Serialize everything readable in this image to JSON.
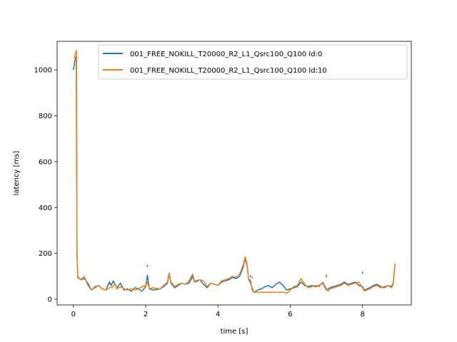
{
  "chart_data": {
    "type": "line",
    "title": "",
    "xlabel": "time [s]",
    "ylabel": "latency [ms]",
    "xlim": [
      -0.45,
      9.35
    ],
    "ylim": [
      -25,
      1125
    ],
    "xticks": [
      0,
      2,
      4,
      6,
      8
    ],
    "yticks": [
      0,
      200,
      400,
      600,
      800,
      1000
    ],
    "grid": false,
    "legend_position": "top-right",
    "series": [
      {
        "name": "001_FREE_NOKILL_T20000_R2_L1_Qsrc100_Q100 Id:0",
        "color": "#1f77b4",
        "points": [
          [
            0.0,
            1000
          ],
          [
            0.04,
            1040
          ],
          [
            0.08,
            1060
          ],
          [
            0.1,
            200
          ],
          [
            0.12,
            95
          ],
          [
            0.2,
            85
          ],
          [
            0.3,
            90
          ],
          [
            0.4,
            70
          ],
          [
            0.5,
            40
          ],
          [
            0.6,
            55
          ],
          [
            0.7,
            60
          ],
          [
            0.8,
            45
          ],
          [
            0.9,
            40
          ],
          [
            1.0,
            75
          ],
          [
            1.05,
            60
          ],
          [
            1.1,
            80
          ],
          [
            1.2,
            50
          ],
          [
            1.3,
            70
          ],
          [
            1.4,
            40
          ],
          [
            1.5,
            45
          ],
          [
            1.6,
            35
          ],
          [
            1.7,
            50
          ],
          [
            1.8,
            45
          ],
          [
            1.9,
            35
          ],
          [
            2.0,
            55
          ],
          [
            2.05,
            105
          ],
          [
            2.1,
            45
          ],
          [
            2.2,
            40
          ],
          [
            2.4,
            45
          ],
          [
            2.5,
            55
          ],
          [
            2.6,
            70
          ],
          [
            2.65,
            110
          ],
          [
            2.7,
            70
          ],
          [
            2.8,
            50
          ],
          [
            2.9,
            60
          ],
          [
            3.0,
            70
          ],
          [
            3.1,
            65
          ],
          [
            3.2,
            70
          ],
          [
            3.3,
            100
          ],
          [
            3.35,
            75
          ],
          [
            3.4,
            80
          ],
          [
            3.5,
            85
          ],
          [
            3.6,
            65
          ],
          [
            3.7,
            50
          ],
          [
            3.8,
            70
          ],
          [
            3.9,
            65
          ],
          [
            4.0,
            60
          ],
          [
            4.1,
            75
          ],
          [
            4.2,
            80
          ],
          [
            4.3,
            85
          ],
          [
            4.4,
            95
          ],
          [
            4.5,
            90
          ],
          [
            4.6,
            100
          ],
          [
            4.7,
            140
          ],
          [
            4.75,
            180
          ],
          [
            4.8,
            150
          ],
          [
            4.85,
            90
          ],
          [
            4.9,
            80
          ],
          [
            4.95,
            40
          ],
          [
            5.0,
            30
          ],
          [
            5.1,
            40
          ],
          [
            5.2,
            45
          ],
          [
            5.3,
            55
          ],
          [
            5.4,
            60
          ],
          [
            5.5,
            50
          ],
          [
            5.6,
            65
          ],
          [
            5.7,
            75
          ],
          [
            5.8,
            60
          ],
          [
            5.9,
            40
          ],
          [
            6.0,
            45
          ],
          [
            6.1,
            50
          ],
          [
            6.2,
            55
          ],
          [
            6.3,
            75
          ],
          [
            6.4,
            60
          ],
          [
            6.5,
            55
          ],
          [
            6.6,
            60
          ],
          [
            6.7,
            55
          ],
          [
            6.8,
            60
          ],
          [
            6.9,
            70
          ],
          [
            7.0,
            40
          ],
          [
            7.1,
            50
          ],
          [
            7.2,
            55
          ],
          [
            7.3,
            60
          ],
          [
            7.4,
            65
          ],
          [
            7.5,
            75
          ],
          [
            7.6,
            65
          ],
          [
            7.7,
            70
          ],
          [
            7.8,
            75
          ],
          [
            7.9,
            60
          ],
          [
            8.0,
            55
          ],
          [
            8.05,
            40
          ],
          [
            8.2,
            50
          ],
          [
            8.3,
            60
          ],
          [
            8.4,
            65
          ],
          [
            8.5,
            55
          ],
          [
            8.6,
            50
          ],
          [
            8.7,
            60
          ],
          [
            8.8,
            55
          ],
          [
            8.85,
            70
          ],
          [
            8.9,
            150
          ]
        ],
        "outliers": [
          [
            1.0,
            70
          ],
          [
            2.05,
            145
          ],
          [
            4.9,
            100
          ],
          [
            7.0,
            100
          ],
          [
            8.0,
            115
          ]
        ]
      },
      {
        "name": "001_FREE_NOKILL_T20000_R2_L1_Qsrc100_Q100 Id:10",
        "color": "#ff7f0e",
        "points": [
          [
            0.02,
            1050
          ],
          [
            0.06,
            1075
          ],
          [
            0.09,
            1085
          ],
          [
            0.1,
            210
          ],
          [
            0.12,
            100
          ],
          [
            0.2,
            85
          ],
          [
            0.3,
            100
          ],
          [
            0.4,
            60
          ],
          [
            0.5,
            40
          ],
          [
            0.6,
            50
          ],
          [
            0.7,
            60
          ],
          [
            0.8,
            45
          ],
          [
            0.9,
            40
          ],
          [
            1.0,
            50
          ],
          [
            1.1,
            55
          ],
          [
            1.15,
            70
          ],
          [
            1.2,
            45
          ],
          [
            1.3,
            55
          ],
          [
            1.4,
            45
          ],
          [
            1.5,
            40
          ],
          [
            1.6,
            45
          ],
          [
            1.7,
            40
          ],
          [
            1.8,
            45
          ],
          [
            1.9,
            55
          ],
          [
            2.0,
            60
          ],
          [
            2.05,
            75
          ],
          [
            2.1,
            45
          ],
          [
            2.2,
            50
          ],
          [
            2.4,
            45
          ],
          [
            2.5,
            60
          ],
          [
            2.6,
            75
          ],
          [
            2.65,
            115
          ],
          [
            2.7,
            75
          ],
          [
            2.8,
            55
          ],
          [
            2.9,
            65
          ],
          [
            3.0,
            70
          ],
          [
            3.1,
            65
          ],
          [
            3.2,
            80
          ],
          [
            3.3,
            110
          ],
          [
            3.35,
            80
          ],
          [
            3.4,
            75
          ],
          [
            3.5,
            85
          ],
          [
            3.6,
            80
          ],
          [
            3.7,
            55
          ],
          [
            3.8,
            70
          ],
          [
            3.9,
            65
          ],
          [
            4.0,
            60
          ],
          [
            4.1,
            80
          ],
          [
            4.2,
            85
          ],
          [
            4.3,
            90
          ],
          [
            4.4,
            100
          ],
          [
            4.5,
            95
          ],
          [
            4.6,
            110
          ],
          [
            4.7,
            150
          ],
          [
            4.75,
            185
          ],
          [
            4.8,
            160
          ],
          [
            4.85,
            85
          ],
          [
            4.9,
            70
          ],
          [
            4.95,
            50
          ],
          [
            5.0,
            30
          ],
          [
            5.85,
            30
          ],
          [
            5.9,
            25
          ],
          [
            6.0,
            40
          ],
          [
            6.1,
            55
          ],
          [
            6.2,
            60
          ],
          [
            6.3,
            90
          ],
          [
            6.4,
            65
          ],
          [
            6.5,
            50
          ],
          [
            6.6,
            55
          ],
          [
            6.7,
            60
          ],
          [
            6.8,
            55
          ],
          [
            6.9,
            75
          ],
          [
            7.0,
            45
          ],
          [
            7.05,
            35
          ],
          [
            7.1,
            45
          ],
          [
            7.2,
            50
          ],
          [
            7.3,
            55
          ],
          [
            7.4,
            60
          ],
          [
            7.5,
            70
          ],
          [
            7.6,
            60
          ],
          [
            7.7,
            65
          ],
          [
            7.8,
            70
          ],
          [
            7.9,
            75
          ],
          [
            8.0,
            50
          ],
          [
            8.05,
            35
          ],
          [
            8.2,
            45
          ],
          [
            8.3,
            55
          ],
          [
            8.4,
            60
          ],
          [
            8.5,
            50
          ],
          [
            8.6,
            55
          ],
          [
            8.7,
            60
          ],
          [
            8.8,
            50
          ],
          [
            8.85,
            65
          ],
          [
            8.9,
            155
          ]
        ],
        "outliers": [
          [
            0.1,
            195
          ],
          [
            4.95,
            95
          ],
          [
            7.0,
            105
          ]
        ]
      }
    ]
  }
}
